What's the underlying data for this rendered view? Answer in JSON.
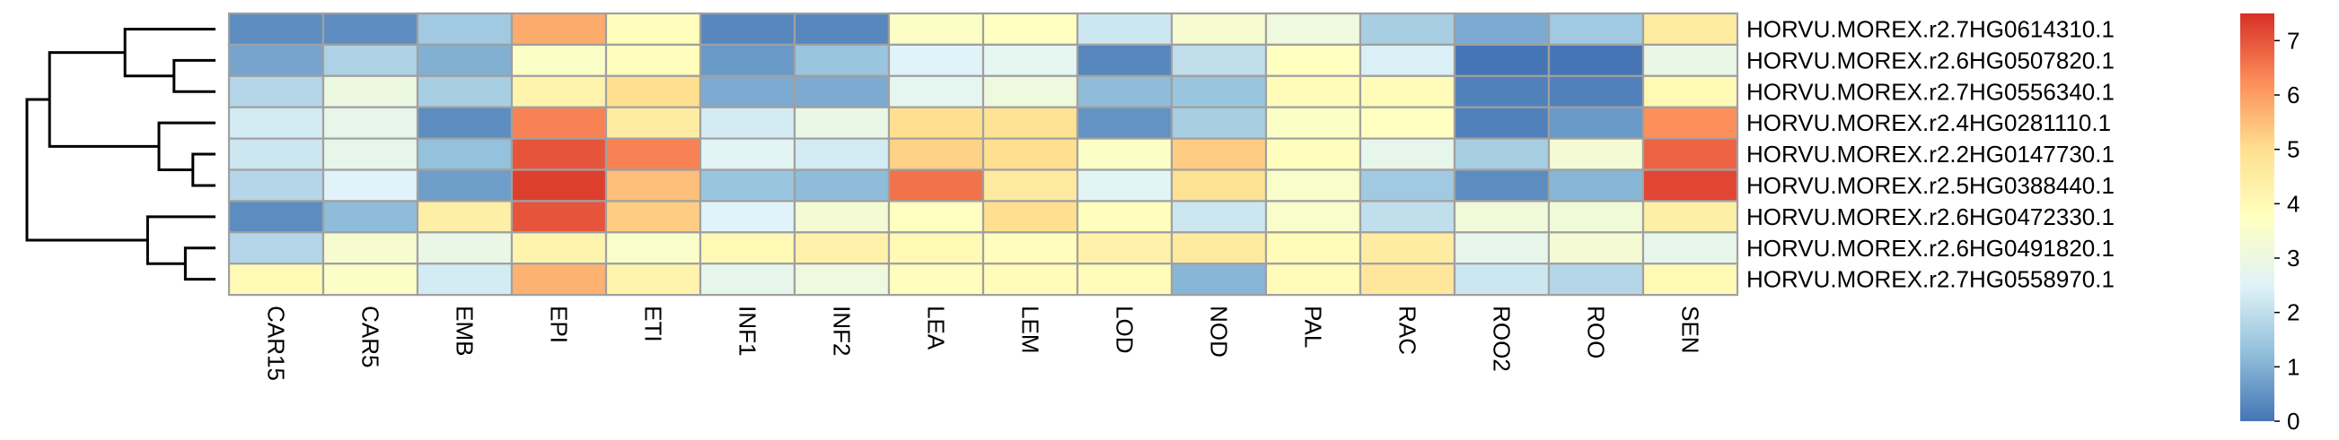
{
  "chart_data": {
    "type": "heatmap",
    "rows": [
      "HORVU.MOREX.r2.7HG0614310.1",
      "HORVU.MOREX.r2.6HG0507820.1",
      "HORVU.MOREX.r2.7HG0556340.1",
      "HORVU.MOREX.r2.4HG0281110.1",
      "HORVU.MOREX.r2.2HG0147730.1",
      "HORVU.MOREX.r2.5HG0388440.1",
      "HORVU.MOREX.r2.6HG0472330.1",
      "HORVU.MOREX.r2.6HG0491820.1",
      "HORVU.MOREX.r2.7HG0558970.1"
    ],
    "columns": [
      "CAR15",
      "CAR5",
      "EMB",
      "EPI",
      "ETI",
      "INF1",
      "INF2",
      "LEA",
      "LEM",
      "LOD",
      "NOD",
      "PAL",
      "RAC",
      "ROO2",
      "ROO",
      "SEN"
    ],
    "values": [
      [
        0.4,
        0.4,
        1.5,
        5.8,
        3.8,
        0.3,
        0.3,
        3.6,
        3.7,
        2.2,
        3.4,
        3.1,
        1.6,
        0.9,
        1.5,
        4.5
      ],
      [
        0.8,
        1.7,
        1.0,
        3.6,
        3.8,
        0.6,
        1.4,
        2.5,
        2.7,
        0.3,
        2.0,
        3.7,
        2.4,
        0.0,
        0.0,
        2.9
      ],
      [
        1.8,
        3.0,
        1.6,
        4.2,
        5.0,
        0.9,
        0.9,
        2.7,
        3.1,
        1.2,
        1.4,
        3.9,
        3.9,
        0.2,
        0.2,
        4.0
      ],
      [
        2.3,
        2.8,
        0.4,
        6.4,
        4.5,
        2.3,
        2.9,
        5.0,
        4.9,
        0.5,
        1.6,
        3.6,
        3.7,
        0.2,
        0.6,
        6.2
      ],
      [
        2.2,
        2.8,
        1.3,
        7.0,
        6.4,
        2.6,
        2.3,
        5.2,
        5.0,
        3.6,
        5.3,
        3.8,
        2.8,
        1.6,
        3.3,
        6.8
      ],
      [
        1.8,
        2.5,
        0.7,
        7.3,
        5.5,
        1.4,
        1.2,
        6.6,
        4.6,
        2.6,
        4.9,
        3.5,
        1.5,
        0.4,
        1.1,
        7.2
      ],
      [
        0.4,
        1.2,
        4.4,
        7.0,
        5.3,
        2.5,
        3.3,
        3.7,
        5.0,
        3.8,
        2.2,
        3.5,
        2.0,
        3.2,
        3.2,
        4.4
      ],
      [
        1.8,
        3.4,
        2.9,
        4.2,
        3.5,
        4.0,
        4.3,
        4.0,
        3.8,
        4.3,
        4.6,
        3.9,
        4.5,
        2.8,
        3.3,
        2.8
      ],
      [
        4.0,
        3.6,
        2.3,
        5.7,
        4.2,
        2.8,
        3.1,
        3.8,
        3.9,
        3.9,
        1.1,
        3.9,
        4.7,
        2.2,
        1.8,
        4.0
      ]
    ],
    "color_scale": {
      "min": 0,
      "max": 7.5,
      "stops": [
        "#4575b4",
        "#91bfdb",
        "#e0f3f8",
        "#ffffbf",
        "#fee090",
        "#fc8d59",
        "#d73027"
      ],
      "ticks": [
        0,
        1,
        2,
        3,
        4,
        5,
        6,
        7
      ]
    },
    "cell_border_color": "#a0a0a0",
    "dendrogram": {
      "side": "left",
      "color": "#000000",
      "merges": [
        {
          "left": "r1",
          "right": "r2",
          "height": 0.22
        },
        {
          "left": "r0",
          "right": "m0",
          "height": 0.48
        },
        {
          "left": "r4",
          "right": "r5",
          "height": 0.12
        },
        {
          "left": "r3",
          "right": "m2",
          "height": 0.3
        },
        {
          "left": "m1",
          "right": "m3",
          "height": 0.88
        },
        {
          "left": "r7",
          "right": "r8",
          "height": 0.16
        },
        {
          "left": "r6",
          "right": "m5",
          "height": 0.36
        },
        {
          "left": "m4",
          "right": "m6",
          "height": 1.0
        }
      ]
    }
  }
}
